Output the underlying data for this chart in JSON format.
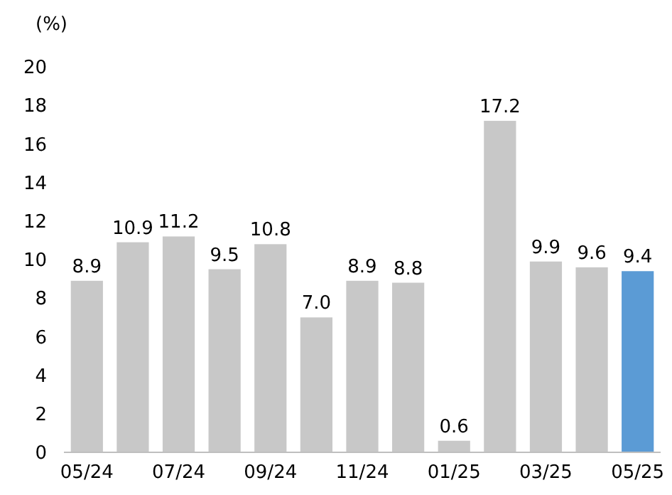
{
  "chart_data": {
    "type": "bar",
    "ylabel": "(%)",
    "categories": [
      "05/24",
      null,
      "07/24",
      null,
      "09/24",
      null,
      "11/24",
      null,
      "01/25",
      null,
      "03/25",
      null,
      "05/25"
    ],
    "values": [
      8.9,
      10.9,
      11.2,
      9.5,
      10.8,
      7.0,
      8.9,
      8.8,
      0.6,
      17.2,
      9.9,
      9.6,
      9.4
    ],
    "value_labels": [
      "8.9",
      "10.9",
      "11.2",
      "9.5",
      "10.8",
      "7.0",
      "8.9",
      "8.8",
      "0.6",
      "17.2",
      "9.9",
      "9.6",
      "9.4"
    ],
    "colors": [
      "#c8c8c8",
      "#c8c8c8",
      "#c8c8c8",
      "#c8c8c8",
      "#c8c8c8",
      "#c8c8c8",
      "#c8c8c8",
      "#c8c8c8",
      "#c8c8c8",
      "#c8c8c8",
      "#c8c8c8",
      "#c8c8c8",
      "#5b9bd5"
    ],
    "ylim": [
      0,
      20
    ],
    "yticks": [
      0,
      2,
      4,
      6,
      8,
      10,
      12,
      14,
      16,
      18,
      20
    ],
    "grid": false
  }
}
